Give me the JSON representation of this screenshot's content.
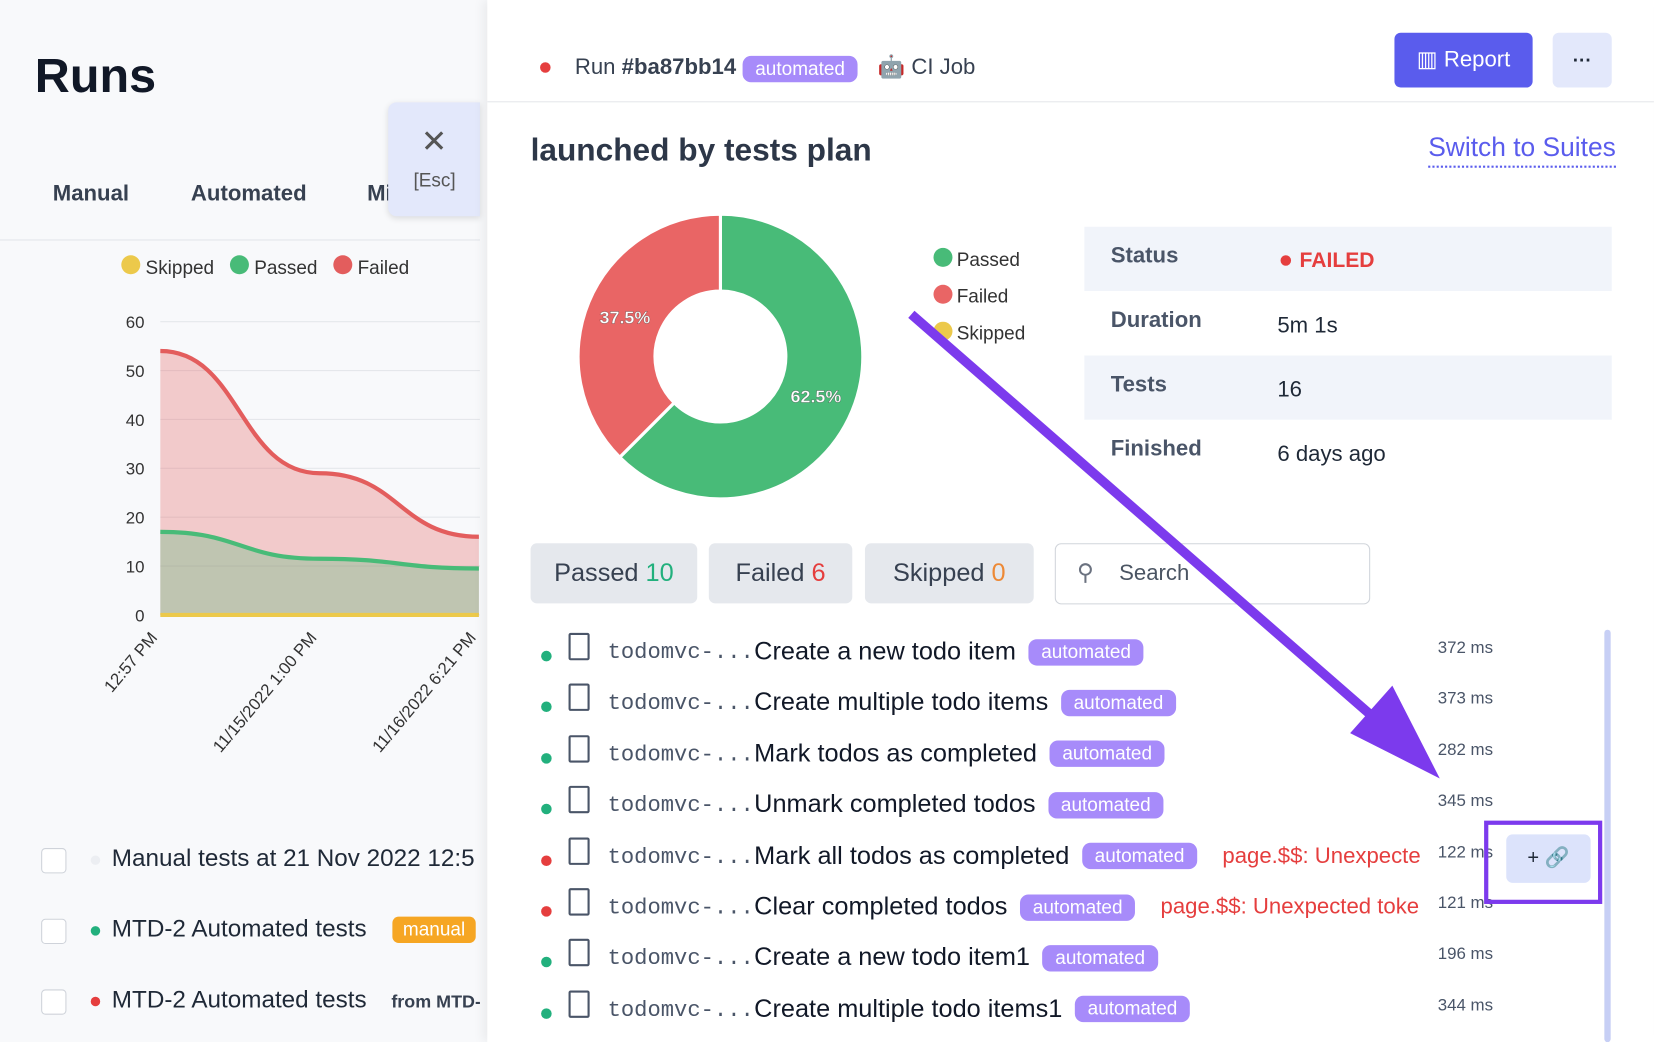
{
  "sidebar": {
    "title": "Runs",
    "tabs": [
      "Manual",
      "Automated",
      "Mi"
    ],
    "close_hint": "[Esc]",
    "chart": {
      "type": "area",
      "categories": [
        "12:57 PM",
        "11/15/2022 1:00 PM",
        "11/16/2022 6:21 PM"
      ],
      "series": [
        {
          "name": "Skipped",
          "color": "#ecc94b",
          "values": [
            0,
            0,
            0
          ]
        },
        {
          "name": "Passed",
          "color": "#48bb78",
          "values": [
            17,
            11.5,
            9.5
          ]
        },
        {
          "name": "Failed",
          "color": "#e35d5d",
          "values": [
            54,
            29,
            16
          ]
        }
      ],
      "ylim": [
        0,
        60
      ],
      "yticks": [
        0,
        10,
        20,
        30,
        40,
        50,
        60
      ],
      "grid": true
    },
    "runs": [
      {
        "title": "Manual tests at 21 Nov 2022 12:5",
        "dot": "#eceef2"
      },
      {
        "title": "MTD-2 Automated tests",
        "dot": "#22b07d",
        "badge": "manual"
      },
      {
        "title": "MTD-2 Automated tests",
        "dot": "#e53e3e",
        "note": "from MTD-"
      }
    ]
  },
  "header": {
    "run_label": "Run",
    "run_id": "#ba87bb14",
    "badge": "automated",
    "job": "CI Job",
    "report": "Report",
    "more": "···"
  },
  "plan": {
    "title": "launched by tests plan",
    "switch": "Switch to Suites"
  },
  "chart_data": {
    "type": "pie",
    "categories": [
      "Passed",
      "Failed",
      "Skipped"
    ],
    "values": [
      62.5,
      37.5,
      0
    ],
    "value_labels": [
      "62.5%",
      "37.5%",
      null
    ],
    "colors": [
      "#48bb78",
      "#e96565",
      "#ecc94b"
    ]
  },
  "details": {
    "rows": [
      [
        "Status",
        "FAILED"
      ],
      [
        "Duration",
        "5m 1s"
      ],
      [
        "Tests",
        "16"
      ],
      [
        "Finished",
        "6 days ago"
      ]
    ]
  },
  "filters": [
    {
      "label": "Passed",
      "count": "10",
      "color": "#22b07d"
    },
    {
      "label": "Failed",
      "count": "6",
      "color": "#e53e3e"
    },
    {
      "label": "Skipped",
      "count": "0",
      "color": "#ed8936"
    }
  ],
  "search": "Search",
  "tests": [
    {
      "dot": "#22b07d",
      "file": "todomvc-...",
      "title": "Create a new todo item",
      "tag": "automated",
      "time": "372 ms"
    },
    {
      "dot": "#22b07d",
      "file": "todomvc-...",
      "title": "Create multiple todo items",
      "tag": "automated",
      "time": "373 ms"
    },
    {
      "dot": "#22b07d",
      "file": "todomvc-...",
      "title": "Mark todos as completed",
      "tag": "automated",
      "time": "282 ms"
    },
    {
      "dot": "#22b07d",
      "file": "todomvc-...",
      "title": "Unmark completed todos",
      "tag": "automated",
      "time": "345 ms"
    },
    {
      "dot": "#e53e3e",
      "file": "todomvc-...",
      "title": "Mark all todos as completed",
      "tag": "automated",
      "error": "page.$$: Unexpecte",
      "time": "122 ms"
    },
    {
      "dot": "#e53e3e",
      "file": "todomvc-...",
      "title": "Clear completed todos",
      "tag": "automated",
      "error": "page.$$: Unexpected toke",
      "time": "121 ms"
    },
    {
      "dot": "#22b07d",
      "file": "todomvc-...",
      "title": "Create a new todo item1",
      "tag": "automated",
      "time": "196 ms"
    },
    {
      "dot": "#22b07d",
      "file": "todomvc-...",
      "title": "Create multiple todo items1",
      "tag": "automated",
      "time": "344 ms"
    }
  ]
}
